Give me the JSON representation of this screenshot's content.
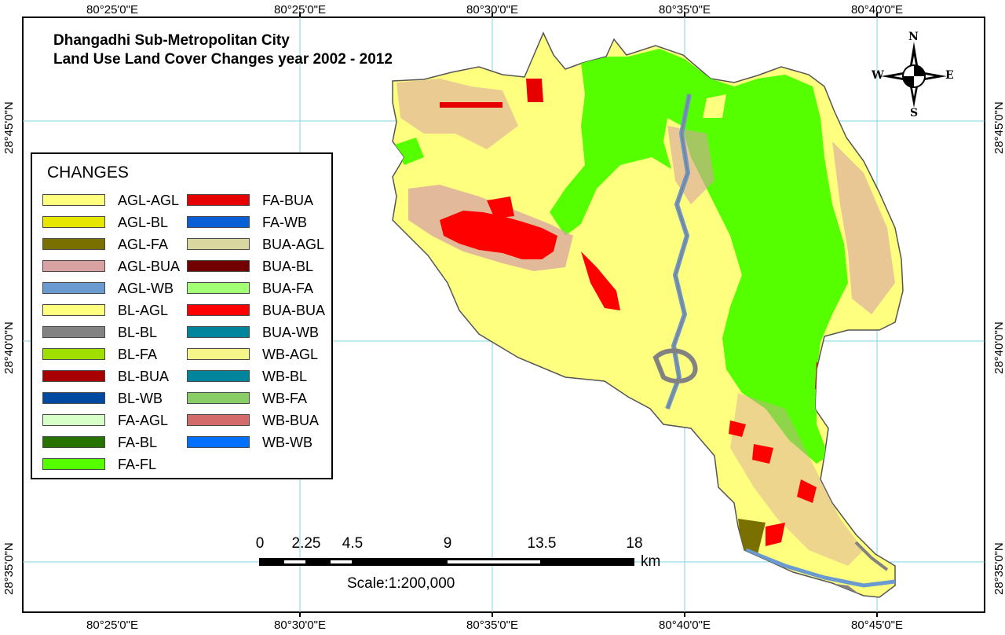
{
  "title": {
    "line1": "Dhangadhi Sub-Metropolitan City",
    "line2": "Land Use Land Cover Changes year 2002 - 2012"
  },
  "coordinates": {
    "longitudes": [
      "80°25'0\"E",
      "80°30'0\"E",
      "80°35'0\"E",
      "80°40'0\"E",
      "80°45'0\"E"
    ],
    "latitudes": [
      "28°45'0\"N",
      "28°40'0\"N",
      "28°35'0\"N"
    ]
  },
  "legend": {
    "title": "CHANGES",
    "column1": [
      {
        "label": "AGL-AGL",
        "color": "#ffff7f"
      },
      {
        "label": "AGL-BL",
        "color": "#e6e600"
      },
      {
        "label": "AGL-FA",
        "color": "#7a7000"
      },
      {
        "label": "AGL-BUA",
        "color": "#d8a2a2"
      },
      {
        "label": "AGL-WB",
        "color": "#6a9ad0"
      },
      {
        "label": "BL-AGL",
        "color": "#ffff7f"
      },
      {
        "label": "BL-BL",
        "color": "#828282"
      },
      {
        "label": "BL-FA",
        "color": "#a0e000"
      },
      {
        "label": "BL-BUA",
        "color": "#a80000"
      },
      {
        "label": "BL-WB",
        "color": "#0049a0"
      },
      {
        "label": "FA-AGL",
        "color": "#d7ffc8"
      },
      {
        "label": "FA-BL",
        "color": "#267300"
      },
      {
        "label": "FA-FL",
        "color": "#55ff00"
      }
    ],
    "column2": [
      {
        "label": "FA-BUA",
        "color": "#e60000"
      },
      {
        "label": "FA-WB",
        "color": "#0a5ed6"
      },
      {
        "label": "BUA-AGL",
        "color": "#d9d6a0"
      },
      {
        "label": "BUA-BL",
        "color": "#730000"
      },
      {
        "label": "BUA-FA",
        "color": "#a3ff73"
      },
      {
        "label": "BUA-BUA",
        "color": "#ff0000"
      },
      {
        "label": "BUA-WB",
        "color": "#00859c"
      },
      {
        "label": "WB-AGL",
        "color": "#f5f58a"
      },
      {
        "label": "WB-BL",
        "color": "#00859c"
      },
      {
        "label": "WB-FA",
        "color": "#89cd66"
      },
      {
        "label": "WB-BUA",
        "color": "#d46b6b"
      },
      {
        "label": "WB-WB",
        "color": "#0070ff"
      }
    ]
  },
  "scale_bar": {
    "ticks": [
      "0",
      "2.25",
      "4.5",
      "9",
      "13.5",
      "18"
    ],
    "unit": "km",
    "scale_text": "Scale:1:200,000"
  },
  "north_arrow": {
    "n": "N",
    "s": "S",
    "e": "E",
    "w": "W"
  },
  "colors": {
    "agriculture": "#ffff7f",
    "forest": "#55ff00",
    "built_up": "#ff0000",
    "built_up_change": "#d8a2a2",
    "barren": "#828282",
    "water": "#6a9ad0",
    "graticule": "#7fd4e6"
  }
}
